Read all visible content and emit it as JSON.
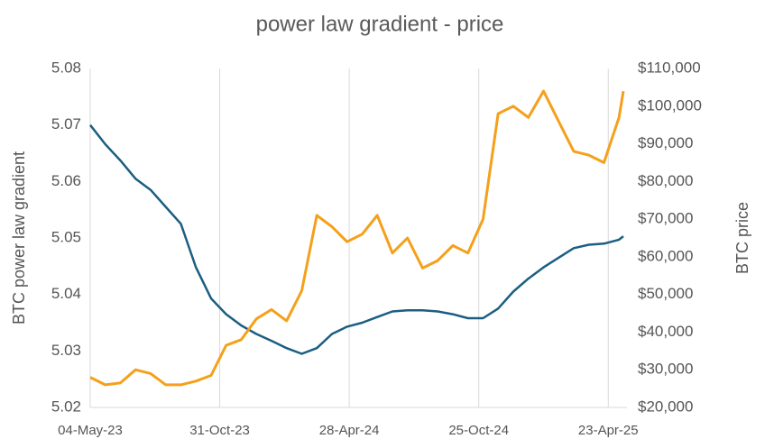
{
  "chart_data": {
    "type": "line",
    "title": "power law gradient - price",
    "y_label": "BTC power law gradient",
    "y2_label": "BTC price",
    "x": [
      "2023-05-04",
      "2023-05-25",
      "2023-06-15",
      "2023-07-06",
      "2023-07-27",
      "2023-08-17",
      "2023-09-07",
      "2023-09-28",
      "2023-10-19",
      "2023-11-09",
      "2023-11-30",
      "2023-12-21",
      "2024-01-11",
      "2024-02-01",
      "2024-02-22",
      "2024-03-14",
      "2024-04-04",
      "2024-04-25",
      "2024-05-16",
      "2024-06-06",
      "2024-06-27",
      "2024-07-18",
      "2024-08-08",
      "2024-08-29",
      "2024-09-19",
      "2024-10-10",
      "2024-10-31",
      "2024-11-21",
      "2024-12-12",
      "2025-01-02",
      "2025-01-23",
      "2025-02-13",
      "2025-03-06",
      "2025-03-27",
      "2025-04-17",
      "2025-05-08",
      "2025-05-14"
    ],
    "series": [
      {
        "name": "BTC power law gradient",
        "color": "#1b5e82",
        "axis": "y",
        "values": [
          5.07,
          5.0666,
          5.0637,
          5.0605,
          5.0585,
          5.0555,
          5.0525,
          5.0448,
          5.0393,
          5.0365,
          5.0345,
          5.033,
          5.0318,
          5.0305,
          5.0295,
          5.0305,
          5.033,
          5.0343,
          5.035,
          5.036,
          5.037,
          5.0372,
          5.0372,
          5.037,
          5.0365,
          5.0358,
          5.0358,
          5.0375,
          5.0405,
          5.0428,
          5.0448,
          5.0465,
          5.0482,
          5.0488,
          5.049,
          5.0497,
          5.0503
        ]
      },
      {
        "name": "BTC price",
        "color": "#f5a01a",
        "axis": "y2",
        "values": [
          28000,
          26000,
          26500,
          30000,
          29000,
          26000,
          26000,
          27000,
          28500,
          36500,
          38000,
          43500,
          46000,
          43000,
          51000,
          71000,
          68000,
          64000,
          66000,
          71000,
          61000,
          65000,
          57000,
          59000,
          63000,
          61000,
          70000,
          98000,
          100000,
          97000,
          104000,
          96000,
          88000,
          87000,
          85000,
          97000,
          104000
        ]
      }
    ],
    "xlim": [
      "2023-05-04",
      "2025-05-19"
    ],
    "xticks": [
      {
        "value": "2023-05-04",
        "label": "04-May-23"
      },
      {
        "value": "2023-10-31",
        "label": "31-Oct-23"
      },
      {
        "value": "2024-04-28",
        "label": "28-Apr-24"
      },
      {
        "value": "2024-10-25",
        "label": "25-Oct-24"
      },
      {
        "value": "2025-04-23",
        "label": "23-Apr-25"
      }
    ],
    "ylim": [
      5.02,
      5.08
    ],
    "yticks": [
      5.02,
      5.03,
      5.04,
      5.05,
      5.06,
      5.07,
      5.08
    ],
    "y2lim": [
      20000,
      110000
    ],
    "y2ticks": [
      {
        "value": 20000,
        "label": "$20,000"
      },
      {
        "value": 30000,
        "label": "$30,000"
      },
      {
        "value": 40000,
        "label": "$40,000"
      },
      {
        "value": 50000,
        "label": "$50,000"
      },
      {
        "value": 60000,
        "label": "$60,000"
      },
      {
        "value": 70000,
        "label": "$70,000"
      },
      {
        "value": 80000,
        "label": "$80,000"
      },
      {
        "value": 90000,
        "label": "$90,000"
      },
      {
        "value": 100000,
        "label": "$100,000"
      },
      {
        "value": 110000,
        "label": "$110,000"
      }
    ],
    "grid": "x"
  }
}
